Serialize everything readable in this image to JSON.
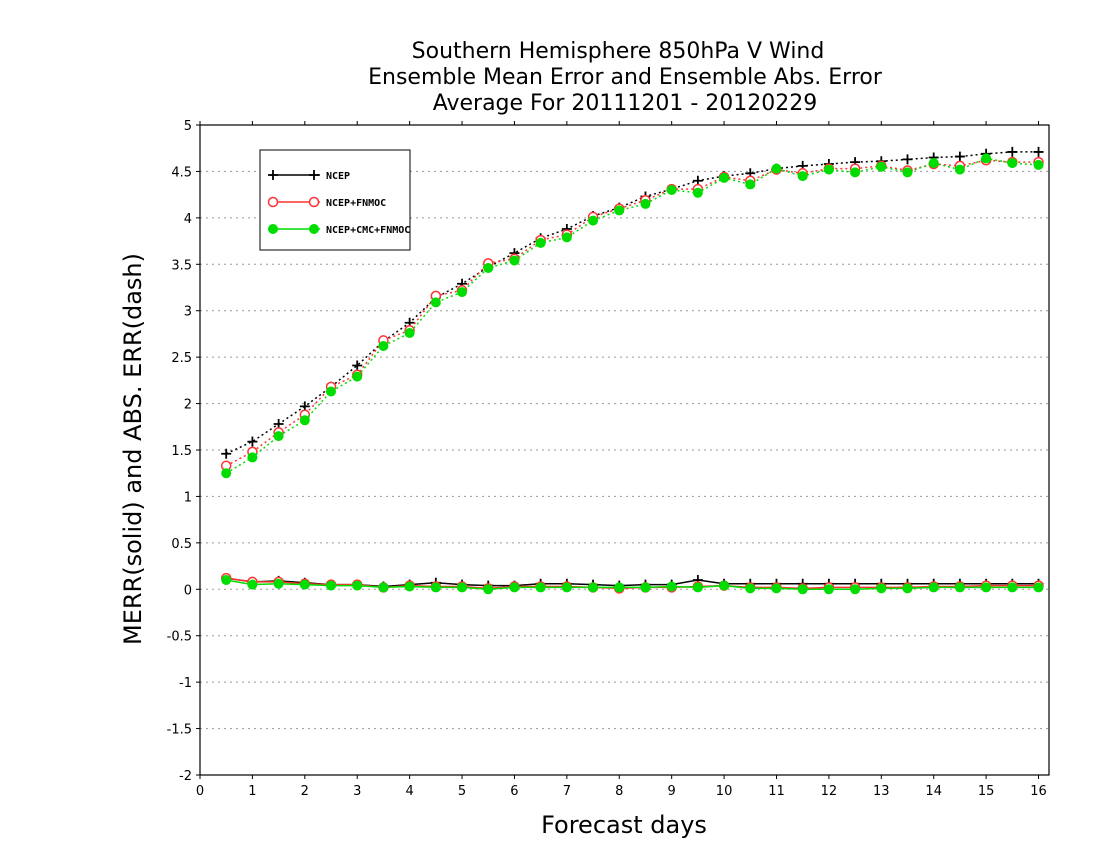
{
  "chart_data": {
    "type": "line",
    "title_lines": [
      "Southern Hemisphere 850hPa V Wind",
      "Ensemble Mean Error and Ensemble Abs. Error",
      "Average For 20111201 - 20120229"
    ],
    "xlabel": "Forecast days",
    "ylabel": "MERR(solid) and ABS. ERR(dash)",
    "xlim": [
      0,
      16.2
    ],
    "ylim": [
      -2,
      5
    ],
    "xticks": [
      0,
      1,
      2,
      3,
      4,
      5,
      6,
      7,
      8,
      9,
      10,
      11,
      12,
      13,
      14,
      15,
      16
    ],
    "yticks": [
      -2,
      -1.5,
      -1,
      -0.5,
      0,
      0.5,
      1,
      1.5,
      2,
      2.5,
      3,
      3.5,
      4,
      4.5,
      5
    ],
    "grid": "horizontal dotted",
    "legend_position": "top-left",
    "x": [
      0.5,
      1,
      1.5,
      2,
      2.5,
      3,
      3.5,
      4,
      4.5,
      5,
      5.5,
      6,
      6.5,
      7,
      7.5,
      8,
      8.5,
      9,
      9.5,
      10,
      10.5,
      11,
      11.5,
      12,
      12.5,
      13,
      13.5,
      14,
      14.5,
      15,
      15.5,
      16
    ],
    "series": [
      {
        "name": "NCEP",
        "color": "#000000",
        "marker": "plus",
        "abs_err": [
          1.46,
          1.59,
          1.78,
          1.97,
          2.18,
          2.41,
          2.67,
          2.87,
          3.14,
          3.29,
          3.47,
          3.62,
          3.78,
          3.88,
          4.02,
          4.11,
          4.23,
          4.31,
          4.4,
          4.45,
          4.48,
          4.53,
          4.56,
          4.58,
          4.6,
          4.61,
          4.63,
          4.65,
          4.66,
          4.69,
          4.71,
          4.71
        ],
        "mean_err": [
          0.12,
          0.08,
          0.09,
          0.07,
          0.05,
          0.05,
          0.03,
          0.05,
          0.07,
          0.05,
          0.04,
          0.04,
          0.06,
          0.06,
          0.05,
          0.04,
          0.05,
          0.05,
          0.1,
          0.06,
          0.06,
          0.06,
          0.06,
          0.06,
          0.06,
          0.06,
          0.06,
          0.06,
          0.06,
          0.06,
          0.06,
          0.06
        ]
      },
      {
        "name": "NCEP+FNMOC",
        "color": "#ff3333",
        "marker": "open-circle",
        "abs_err": [
          1.33,
          1.48,
          1.69,
          1.88,
          2.18,
          2.31,
          2.68,
          2.79,
          3.16,
          3.22,
          3.51,
          3.56,
          3.76,
          3.82,
          4.01,
          4.1,
          4.19,
          4.31,
          4.31,
          4.44,
          4.4,
          4.52,
          4.48,
          4.53,
          4.53,
          4.56,
          4.51,
          4.58,
          4.56,
          4.62,
          4.6,
          4.6
        ],
        "mean_err": [
          0.12,
          0.08,
          0.08,
          0.06,
          0.05,
          0.05,
          0.02,
          0.04,
          0.03,
          0.03,
          0.01,
          0.03,
          0.03,
          0.03,
          0.02,
          0.01,
          0.02,
          0.02,
          0.03,
          0.04,
          0.02,
          0.02,
          0.01,
          0.02,
          0.02,
          0.02,
          0.02,
          0.03,
          0.03,
          0.04,
          0.04,
          0.04
        ]
      },
      {
        "name": "NCEP+CMC+FNMOC",
        "color": "#00dd00",
        "marker": "filled-circle",
        "abs_err": [
          1.25,
          1.42,
          1.65,
          1.82,
          2.13,
          2.29,
          2.62,
          2.76,
          3.09,
          3.2,
          3.46,
          3.54,
          3.73,
          3.79,
          3.97,
          4.08,
          4.15,
          4.3,
          4.27,
          4.43,
          4.36,
          4.53,
          4.45,
          4.52,
          4.49,
          4.55,
          4.49,
          4.59,
          4.52,
          4.64,
          4.59,
          4.57
        ],
        "mean_err": [
          0.1,
          0.05,
          0.06,
          0.05,
          0.04,
          0.04,
          0.02,
          0.03,
          0.02,
          0.02,
          0.0,
          0.02,
          0.02,
          0.02,
          0.02,
          0.02,
          0.02,
          0.03,
          0.02,
          0.04,
          0.01,
          0.01,
          0.0,
          0.0,
          0.0,
          0.01,
          0.01,
          0.02,
          0.02,
          0.02,
          0.02,
          0.02
        ]
      }
    ]
  }
}
